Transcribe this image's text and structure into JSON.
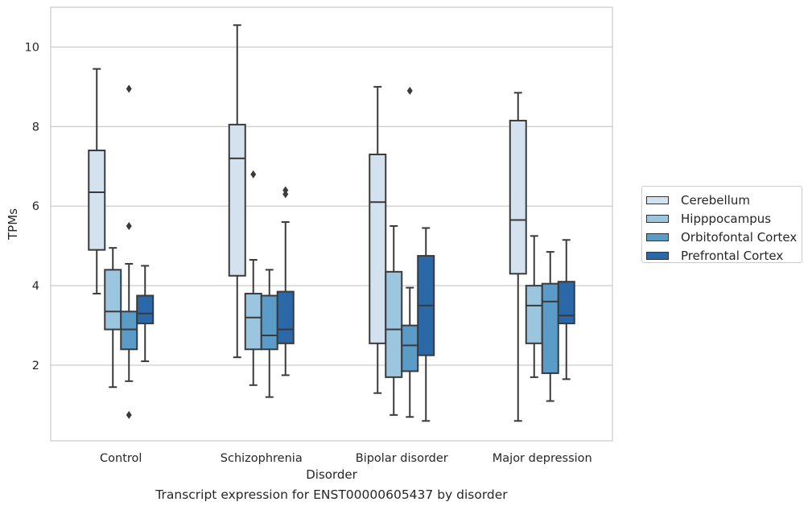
{
  "caption": "Transcript expression for ENST00000605437 by disorder",
  "chart_data": {
    "type": "box",
    "xlabel": "Disorder",
    "ylabel": "TPMs",
    "ylim": [
      0.1,
      11.0
    ],
    "yticks": [
      2,
      4,
      6,
      8,
      10
    ],
    "grid": "horizontal",
    "legend_placement": "right",
    "categories": [
      "Control",
      "Schizophrenia",
      "Bipolar disorder",
      "Major depression"
    ],
    "series": [
      {
        "name": "Cerebellum",
        "color": "#d4e2f0",
        "boxes": [
          {
            "whisker_low": 3.8,
            "q1": 4.9,
            "median": 6.35,
            "q3": 7.4,
            "whisker_high": 9.45,
            "outliers": []
          },
          {
            "whisker_low": 2.2,
            "q1": 4.25,
            "median": 7.2,
            "q3": 8.05,
            "whisker_high": 10.55,
            "outliers": []
          },
          {
            "whisker_low": 1.3,
            "q1": 2.55,
            "median": 6.1,
            "q3": 7.3,
            "whisker_high": 9.0,
            "outliers": []
          },
          {
            "whisker_low": 0.6,
            "q1": 4.3,
            "median": 5.65,
            "q3": 8.15,
            "whisker_high": 8.85,
            "outliers": []
          }
        ]
      },
      {
        "name": "Hipppocampus",
        "color": "#9cc5df",
        "boxes": [
          {
            "whisker_low": 1.45,
            "q1": 2.9,
            "median": 3.35,
            "q3": 4.4,
            "whisker_high": 4.95,
            "outliers": []
          },
          {
            "whisker_low": 1.5,
            "q1": 2.4,
            "median": 3.2,
            "q3": 3.8,
            "whisker_high": 4.65,
            "outliers": [
              6.8
            ]
          },
          {
            "whisker_low": 0.75,
            "q1": 1.7,
            "median": 2.9,
            "q3": 4.35,
            "whisker_high": 5.5,
            "outliers": []
          },
          {
            "whisker_low": 1.7,
            "q1": 2.55,
            "median": 3.5,
            "q3": 4.0,
            "whisker_high": 5.25,
            "outliers": []
          }
        ]
      },
      {
        "name": "Orbitofontal Cortex",
        "color": "#5a9bc8",
        "boxes": [
          {
            "whisker_low": 1.6,
            "q1": 2.4,
            "median": 2.9,
            "q3": 3.35,
            "whisker_high": 4.55,
            "outliers": [
              8.95,
              5.5,
              0.75
            ]
          },
          {
            "whisker_low": 1.2,
            "q1": 2.4,
            "median": 2.75,
            "q3": 3.75,
            "whisker_high": 4.4,
            "outliers": []
          },
          {
            "whisker_low": 0.7,
            "q1": 1.85,
            "median": 2.5,
            "q3": 3.0,
            "whisker_high": 3.95,
            "outliers": [
              8.9
            ]
          },
          {
            "whisker_low": 1.1,
            "q1": 1.8,
            "median": 3.6,
            "q3": 4.05,
            "whisker_high": 4.85,
            "outliers": []
          }
        ]
      },
      {
        "name": "Prefrontal Cortex",
        "color": "#2a68a8",
        "boxes": [
          {
            "whisker_low": 2.1,
            "q1": 3.05,
            "median": 3.3,
            "q3": 3.75,
            "whisker_high": 4.5,
            "outliers": []
          },
          {
            "whisker_low": 1.75,
            "q1": 2.55,
            "median": 2.9,
            "q3": 3.85,
            "whisker_high": 5.6,
            "outliers": [
              6.4,
              6.3
            ]
          },
          {
            "whisker_low": 0.6,
            "q1": 2.25,
            "median": 3.5,
            "q3": 4.75,
            "whisker_high": 5.45,
            "outliers": []
          },
          {
            "whisker_low": 1.65,
            "q1": 3.05,
            "median": 3.25,
            "q3": 4.1,
            "whisker_high": 5.15,
            "outliers": []
          }
        ]
      }
    ]
  }
}
